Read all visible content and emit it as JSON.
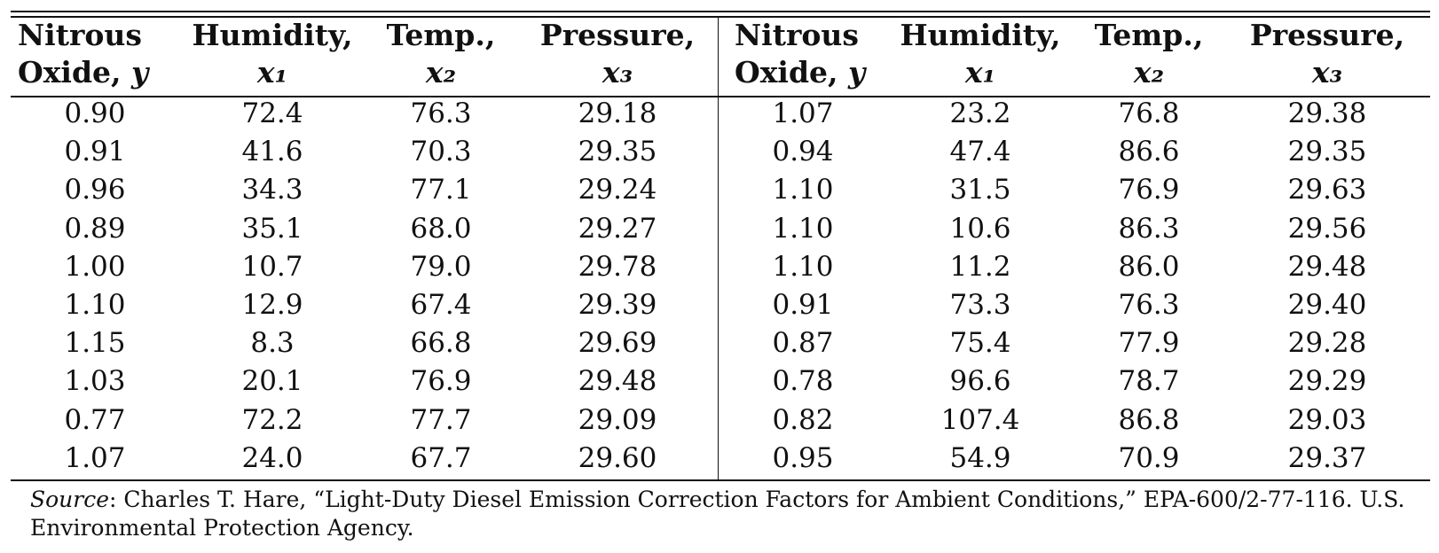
{
  "table": {
    "headers": [
      {
        "line1": "Nitrous",
        "line2": "Oxide,",
        "var": "y"
      },
      {
        "line1": "Humidity,",
        "line2": "",
        "var": "x₁"
      },
      {
        "line1": "Temp.,",
        "line2": "",
        "var": "x₂"
      },
      {
        "line1": "Pressure,",
        "line2": "",
        "var": "x₃"
      },
      {
        "line1": "Nitrous",
        "line2": "Oxide,",
        "var": "y"
      },
      {
        "line1": "Humidity,",
        "line2": "",
        "var": "x₁"
      },
      {
        "line1": "Temp.,",
        "line2": "",
        "var": "x₂"
      },
      {
        "line1": "Pressure,",
        "line2": "",
        "var": "x₃"
      }
    ],
    "rows": [
      [
        "0.90",
        "72.4",
        "76.3",
        "29.18",
        "1.07",
        "23.2",
        "76.8",
        "29.38"
      ],
      [
        "0.91",
        "41.6",
        "70.3",
        "29.35",
        "0.94",
        "47.4",
        "86.6",
        "29.35"
      ],
      [
        "0.96",
        "34.3",
        "77.1",
        "29.24",
        "1.10",
        "31.5",
        "76.9",
        "29.63"
      ],
      [
        "0.89",
        "35.1",
        "68.0",
        "29.27",
        "1.10",
        "10.6",
        "86.3",
        "29.56"
      ],
      [
        "1.00",
        "10.7",
        "79.0",
        "29.78",
        "1.10",
        "11.2",
        "86.0",
        "29.48"
      ],
      [
        "1.10",
        "12.9",
        "67.4",
        "29.39",
        "0.91",
        "73.3",
        "76.3",
        "29.40"
      ],
      [
        "1.15",
        "8.3",
        "66.8",
        "29.69",
        "0.87",
        "75.4",
        "77.9",
        "29.28"
      ],
      [
        "1.03",
        "20.1",
        "76.9",
        "29.48",
        "0.78",
        "96.6",
        "78.7",
        "29.29"
      ],
      [
        "0.77",
        "72.2",
        "77.7",
        "29.09",
        "0.82",
        "107.4",
        "86.8",
        "29.03"
      ],
      [
        "1.07",
        "24.0",
        "67.7",
        "29.60",
        "0.95",
        "54.9",
        "70.9",
        "29.37"
      ]
    ]
  },
  "source": {
    "label": "Source",
    "text": ": Charles T. Hare, “Light-Duty Diesel Emission Correction Factors for Ambient Conditions,” EPA-600/2-77-116. U.S. Environmental Protection Agency."
  }
}
